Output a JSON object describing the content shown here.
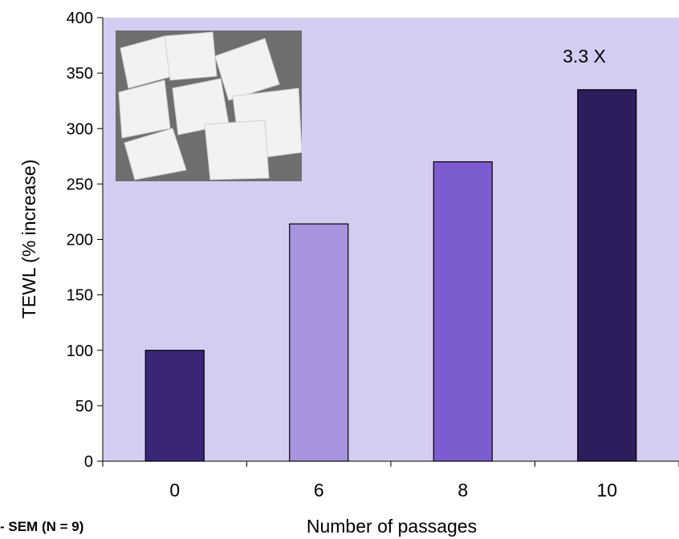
{
  "chart_data": {
    "type": "bar",
    "categories": [
      "0",
      "6",
      "8",
      "10"
    ],
    "values": [
      100,
      214,
      270,
      335
    ],
    "bar_colors": [
      "#3b2577",
      "#a893df",
      "#7c5ccf",
      "#2e1d5c"
    ],
    "xlabel": "Number of passages",
    "ylabel": "TEWL (% increase)",
    "ylim": [
      0,
      400
    ],
    "yticks": [
      0,
      50,
      100,
      150,
      200,
      250,
      300,
      350,
      400
    ],
    "plot_background": "#d5cdf1",
    "grid": false,
    "annotation": "3.3 X",
    "footnote": "- SEM (N = 9)",
    "inset_image": "photo of white square gauze pads on gray background"
  }
}
